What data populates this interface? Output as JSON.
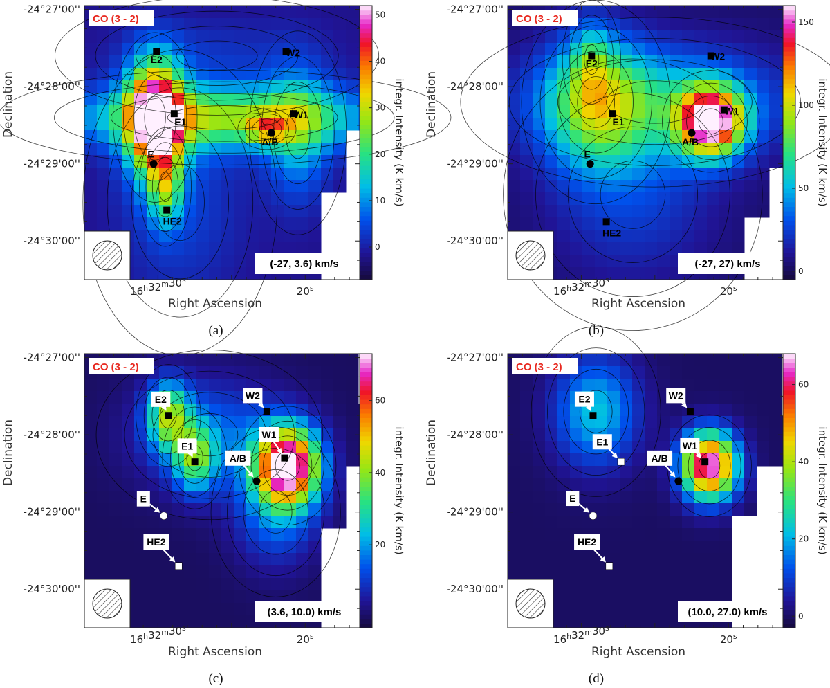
{
  "chart_data": [
    {
      "type": "heatmap",
      "caption": "(a)",
      "molecule_label": "CO (3 - 2)",
      "velocity_label": "(-27, 3.6) km/s",
      "xlabel": "Right Ascension",
      "ylabel": "Declination",
      "x_ticks": [
        {
          "h": "16",
          "m": "32",
          "s": "30"
        },
        {
          "s": "20"
        }
      ],
      "y_ticks": [
        "-24°27'00''",
        "-24°28'00''",
        "-24°29'00''",
        "-24°30'00''"
      ],
      "colorbar": {
        "title": "integr. Intensity (K km/s)",
        "range": [
          -7,
          52
        ],
        "ticks": [
          0,
          10,
          20,
          30,
          40,
          50
        ]
      },
      "labels_white": false,
      "sources": [
        {
          "name": "E2",
          "marker": "square",
          "ra": 30.1,
          "dec": -27.55
        },
        {
          "name": "W2",
          "marker": "square",
          "ra": 21.3,
          "dec": -27.55
        },
        {
          "name": "E1",
          "marker": "square",
          "ra": 28.9,
          "dec": -28.35
        },
        {
          "name": "W1",
          "marker": "square",
          "ra": 20.8,
          "dec": -28.35
        },
        {
          "name": "A/B",
          "marker": "circle",
          "ra": 22.3,
          "dec": -28.6
        },
        {
          "name": "E",
          "marker": "circle",
          "ra": 30.3,
          "dec": -29.0
        },
        {
          "name": "HE2",
          "marker": "square",
          "ra": 29.4,
          "dec": -29.6
        }
      ],
      "blobs": [
        {
          "ra": 30.2,
          "dec": -28.4,
          "peak": 55,
          "sra": 1.3,
          "sdec": 0.5
        },
        {
          "ra": 29.5,
          "dec": -29.3,
          "peak": 20,
          "sra": 0.8,
          "sdec": 0.35
        },
        {
          "ra": 22.6,
          "dec": -28.55,
          "peak": 18,
          "sra": 0.9,
          "sdec": 0.12
        },
        {
          "ra": 25.5,
          "dec": -28.4,
          "peak": 28,
          "sra": 7.0,
          "sdec": 0.28
        },
        {
          "ra": 20.5,
          "dec": -28.6,
          "peak": 14,
          "sra": 1.5,
          "sdec": 0.6
        },
        {
          "ra": 26.0,
          "dec": -27.6,
          "peak": 4,
          "sra": 5.0,
          "sdec": 0.35
        },
        {
          "ra": 28.5,
          "dec": -29.5,
          "peak": 6,
          "sra": 3.0,
          "sdec": 0.9
        }
      ],
      "base": -2
    },
    {
      "type": "heatmap",
      "caption": "(b)",
      "molecule_label": "CO (3 - 2)",
      "velocity_label": "(-27, 27) km/s",
      "xlabel": "Right Ascension",
      "ylabel": "Declination",
      "x_ticks": [
        {
          "h": "16",
          "m": "32",
          "s": "30"
        },
        {
          "s": "20"
        }
      ],
      "y_ticks": [
        "-24°27'00''",
        "-24°28'00''",
        "-24°29'00''",
        "-24°30'00''"
      ],
      "colorbar": {
        "title": "integr. Intensity (K km/s)",
        "range": [
          -5,
          160
        ],
        "ticks": [
          0,
          50,
          100,
          150
        ]
      },
      "labels_white": false,
      "sources": [
        {
          "name": "E2",
          "marker": "square",
          "ra": 29.3,
          "dec": -27.6
        },
        {
          "name": "W2",
          "marker": "square",
          "ra": 21.2,
          "dec": -27.6
        },
        {
          "name": "E1",
          "marker": "square",
          "ra": 27.9,
          "dec": -28.35
        },
        {
          "name": "W1",
          "marker": "square",
          "ra": 20.3,
          "dec": -28.3
        },
        {
          "name": "A/B",
          "marker": "circle",
          "ra": 22.5,
          "dec": -28.6
        },
        {
          "name": "E",
          "marker": "circle",
          "ra": 29.4,
          "dec": -29.0
        },
        {
          "name": "HE2",
          "marker": "square",
          "ra": 28.3,
          "dec": -29.75
        }
      ],
      "blobs": [
        {
          "ra": 21.2,
          "dec": -28.45,
          "peak": 150,
          "sra": 1.5,
          "sdec": 0.3
        },
        {
          "ra": 29.0,
          "dec": -28.2,
          "peak": 60,
          "sra": 2.3,
          "sdec": 0.6
        },
        {
          "ra": 29.3,
          "dec": -27.65,
          "peak": 28,
          "sra": 0.9,
          "sdec": 0.35
        },
        {
          "ra": 25.0,
          "dec": -28.2,
          "peak": 50,
          "sra": 6.0,
          "sdec": 0.5
        },
        {
          "ra": 26.5,
          "dec": -29.4,
          "peak": 22,
          "sra": 4.0,
          "sdec": 0.8
        }
      ],
      "base": 3
    },
    {
      "type": "heatmap",
      "caption": "(c)",
      "molecule_label": "CO (3 - 2)",
      "velocity_label": "(3.6, 10.0) km/s",
      "xlabel": "Right Ascension",
      "ylabel": "Declination",
      "x_ticks": [
        {
          "h": "16",
          "m": "32",
          "s": "30"
        },
        {
          "s": "20"
        }
      ],
      "y_ticks": [
        "-24°27'00''",
        "-24°28'00''",
        "-24°29'00''",
        "-24°30'00''"
      ],
      "colorbar": {
        "title": "integr. Intensity (K km/s)",
        "range": [
          -3,
          73
        ],
        "ticks": [
          20,
          40,
          60
        ]
      },
      "labels_white": true,
      "sources": [
        {
          "name": "E2",
          "marker": "square",
          "ra": 29.3,
          "dec": -27.75,
          "lx": -11,
          "ly": -23.4
        },
        {
          "name": "E1",
          "marker": "square",
          "ra": 27.5,
          "dec": -28.35,
          "lx": -11,
          "ly": -22.85
        },
        {
          "name": "W2",
          "marker": "square",
          "ra": 22.6,
          "dec": -27.7,
          "lx": -20.5,
          "ly": -23.3
        },
        {
          "name": "W1",
          "marker": "square",
          "ra": 21.4,
          "dec": -28.3,
          "lx": -22.5,
          "ly": -33.6
        },
        {
          "name": "A/B",
          "marker": "circle",
          "ra": 23.3,
          "dec": -28.6,
          "lx": -27.1,
          "ly": -33.3
        },
        {
          "name": "E",
          "marker": "circle",
          "ra": 29.6,
          "dec": -29.05,
          "lx": -29.6,
          "ly": -24.6
        },
        {
          "name": "HE2",
          "marker": "square",
          "ra": 28.6,
          "dec": -29.7,
          "lx": -32.3,
          "ly": -34.75
        }
      ],
      "blobs": [
        {
          "ra": 21.2,
          "dec": -28.4,
          "peak": 75,
          "sra": 1.5,
          "sdec": 0.35
        },
        {
          "ra": 29.3,
          "dec": -27.75,
          "peak": 35,
          "sra": 1.0,
          "sdec": 0.3
        },
        {
          "ra": 27.5,
          "dec": -28.3,
          "peak": 30,
          "sra": 1.0,
          "sdec": 0.3
        },
        {
          "ra": 26.5,
          "dec": -28.0,
          "peak": 15,
          "sra": 3.5,
          "sdec": 0.5
        },
        {
          "ra": 22.0,
          "dec": -29.0,
          "peak": 15,
          "sra": 2.0,
          "sdec": 0.5
        }
      ],
      "base": 0
    },
    {
      "type": "heatmap",
      "caption": "(d)",
      "molecule_label": "CO (3 - 2)",
      "velocity_label": "(10.0, 27.0) km/s",
      "xlabel": "Right Ascension",
      "ylabel": "Declination",
      "x_ticks": [
        {
          "h": "16",
          "m": "32",
          "s": "30"
        },
        {
          "s": "20"
        }
      ],
      "y_ticks": [
        "-24°27'00''",
        "-24°28'00''",
        "-24°29'00''",
        "-24°30'00''"
      ],
      "colorbar": {
        "title": "integr. Intensity (K km/s)",
        "range": [
          -3,
          68
        ],
        "ticks": [
          0,
          20,
          40,
          60
        ]
      },
      "labels_white": true,
      "sources": [
        {
          "name": "E2",
          "marker": "square",
          "ra": 29.2,
          "dec": -27.75,
          "lx": -12.5,
          "ly": -23.6
        },
        {
          "name": "E1",
          "marker": "square",
          "ra": 27.3,
          "dec": -28.35,
          "lx": -27.1,
          "ly": -28.9
        },
        {
          "name": "W2",
          "marker": "square",
          "ra": 22.6,
          "dec": -27.7,
          "lx": -20.7,
          "ly": -23.3
        },
        {
          "name": "W1",
          "marker": "square",
          "ra": 21.6,
          "dec": -28.35,
          "lx": -21.8,
          "ly": -23.2
        },
        {
          "name": "A/B",
          "marker": "circle",
          "ra": 23.4,
          "dec": -28.6,
          "lx": -27.3,
          "ly": -33.2
        },
        {
          "name": "E",
          "marker": "circle",
          "ra": 29.2,
          "dec": -29.05,
          "lx": -29.6,
          "ly": -25.2
        },
        {
          "name": "HE2",
          "marker": "square",
          "ra": 28.1,
          "dec": -29.7,
          "lx": -32.3,
          "ly": -34.75
        }
      ],
      "blobs": [
        {
          "ra": 21.3,
          "dec": -28.4,
          "peak": 68,
          "sra": 1.3,
          "sdec": 0.3
        },
        {
          "ra": 29.0,
          "dec": -27.7,
          "peak": 22,
          "sra": 2.0,
          "sdec": 0.5
        }
      ],
      "base": 0
    }
  ],
  "panel_order": [
    "a",
    "b",
    "c",
    "d"
  ]
}
